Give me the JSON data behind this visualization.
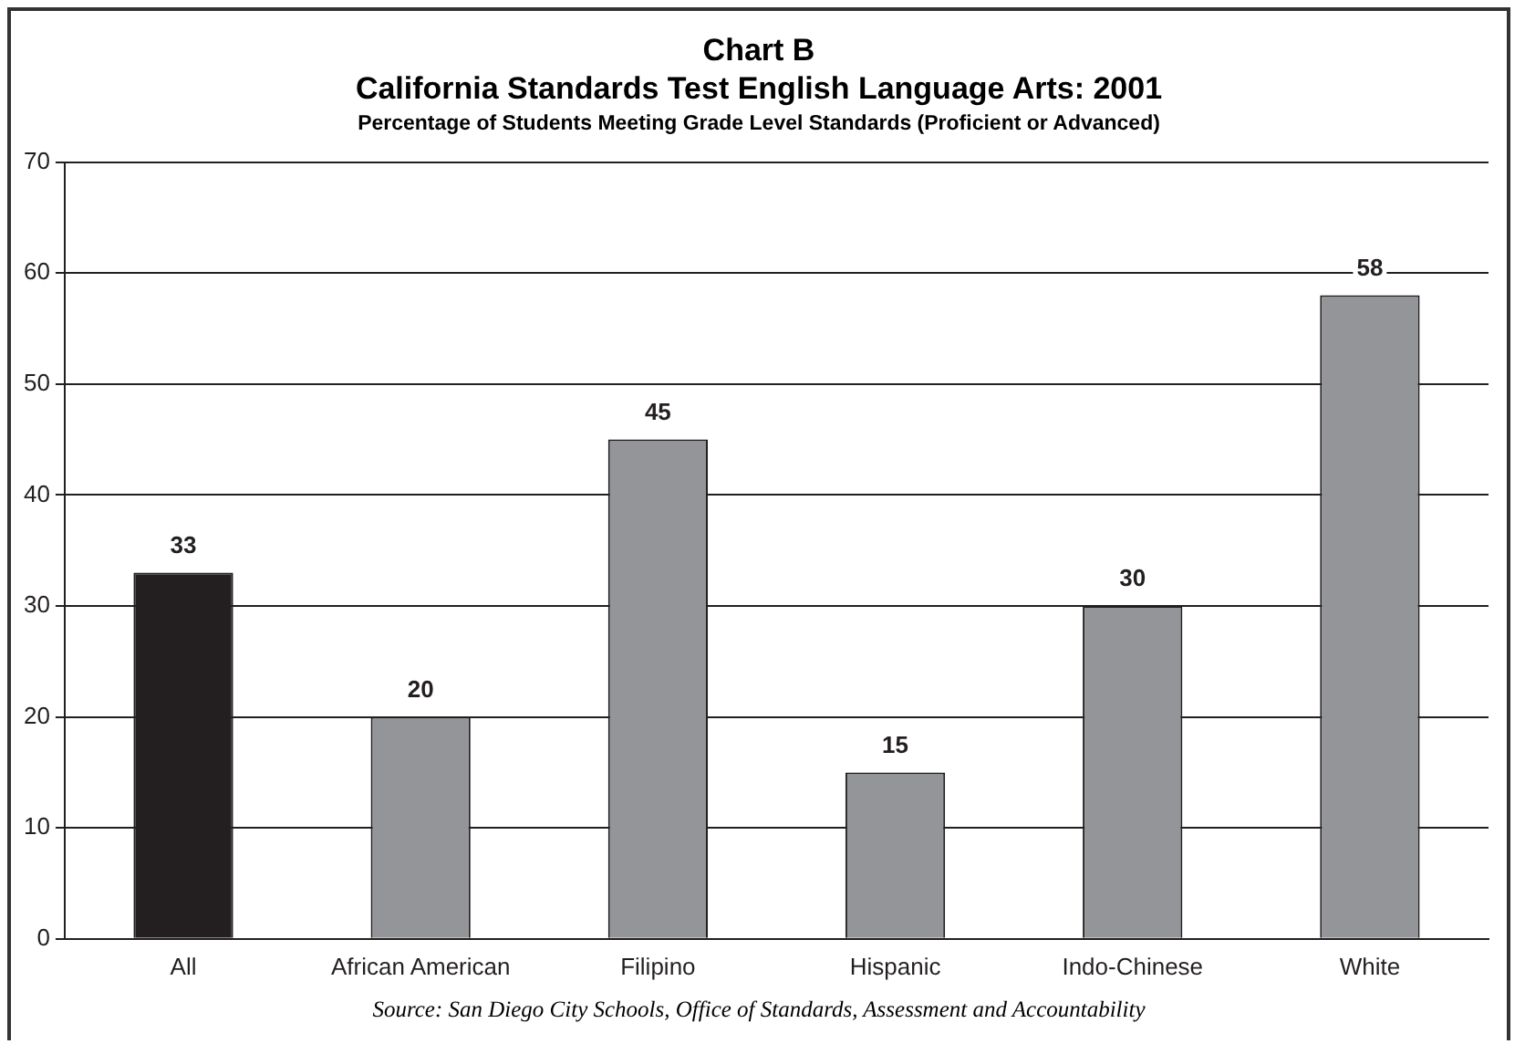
{
  "chart_data": {
    "type": "bar",
    "title": "Chart B",
    "subtitle": [
      "California Standards Test English Language Arts: 2001",
      "Percentage of Students Meeting Grade Level Standards (Proficient or Advanced)"
    ],
    "categories": [
      "All",
      "African American",
      "Filipino",
      "Hispanic",
      "Indo-Chinese",
      "White"
    ],
    "values": [
      33,
      20,
      45,
      15,
      30,
      58
    ],
    "colors": [
      "#231f20",
      "#939598",
      "#939598",
      "#939598",
      "#939598",
      "#939598"
    ],
    "ylim": [
      0,
      70
    ],
    "yticks": [
      0,
      10,
      20,
      30,
      40,
      50,
      60,
      70
    ],
    "grid": "y",
    "data_labels": true,
    "legend": false,
    "annotations": [
      "Source: San Diego City Schools, Office of Standards, Assessment and Accountability"
    ]
  }
}
